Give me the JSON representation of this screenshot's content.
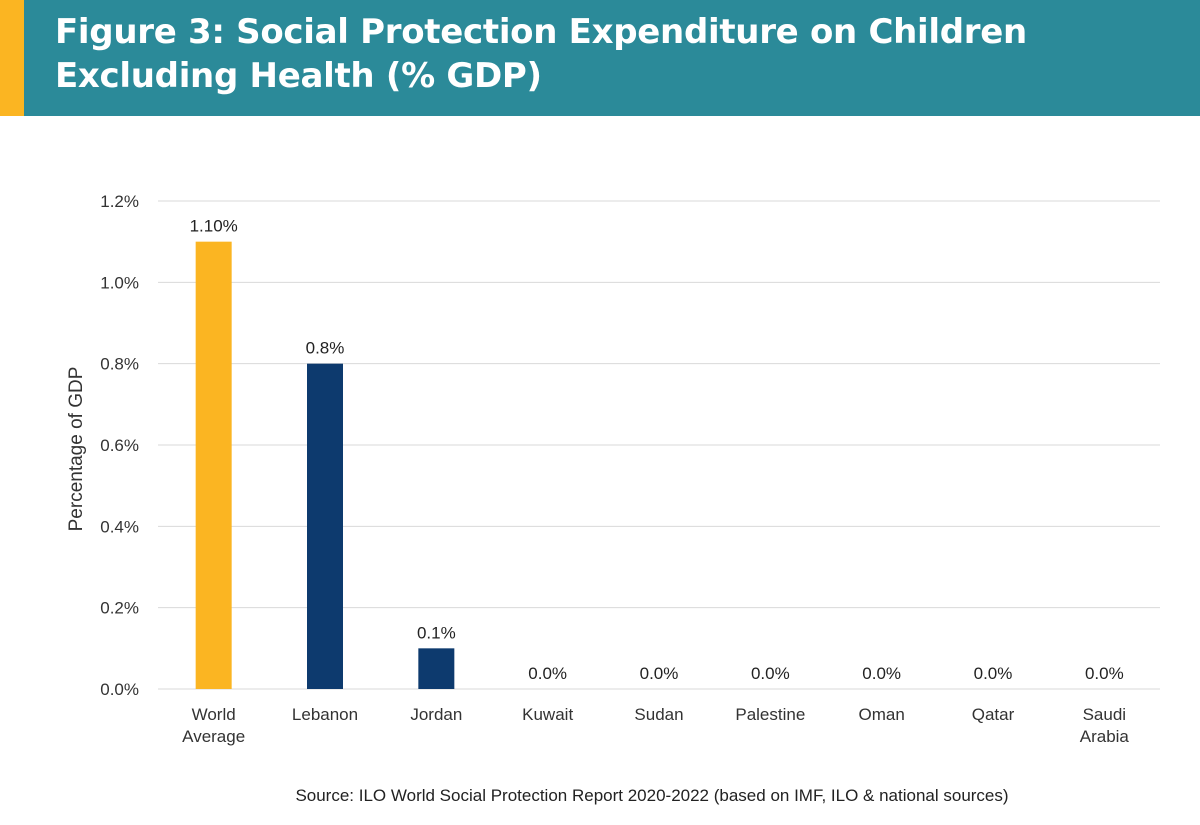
{
  "title": "Figure 3: Social Protection Expenditure on Children Excluding Health (% GDP)",
  "source": "Source: ILO World Social Protection Report 2020-2022 (based on IMF, ILO & national sources)",
  "colors": {
    "header": "#2b8a99",
    "accent": "#fbb522",
    "highlight_bar": "#fbb522",
    "bar": "#0d3a6e",
    "grid": "#d9d9d9"
  },
  "chart_data": {
    "type": "bar",
    "categories": [
      "World Average",
      "Lebanon",
      "Jordan",
      "Kuwait",
      "Sudan",
      "Palestine",
      "Oman",
      "Qatar",
      "Saudi Arabia"
    ],
    "category_lines": [
      [
        "World",
        "Average"
      ],
      [
        "Lebanon"
      ],
      [
        "Jordan"
      ],
      [
        "Kuwait"
      ],
      [
        "Sudan"
      ],
      [
        "Palestine"
      ],
      [
        "Oman"
      ],
      [
        "Qatar"
      ],
      [
        "Saudi",
        "Arabia"
      ]
    ],
    "values": [
      1.1,
      0.8,
      0.1,
      0.0,
      0.0,
      0.0,
      0.0,
      0.0,
      0.0
    ],
    "data_labels": [
      "1.10%",
      "0.8%",
      "0.1%",
      "0.0%",
      "0.0%",
      "0.0%",
      "0.0%",
      "0.0%",
      "0.0%"
    ],
    "ylabel": "Percentage of GDP",
    "xlabel": "",
    "ylim": [
      0,
      1.2
    ],
    "yticks": [
      0,
      0.2,
      0.4,
      0.6,
      0.8,
      1.0,
      1.2
    ],
    "ytick_labels": [
      "0.0%",
      "0.2%",
      "0.4%",
      "0.6%",
      "0.8%",
      "1.0%",
      "1.2%"
    ],
    "highlight_index": 0,
    "grid": true,
    "legend": "none"
  }
}
